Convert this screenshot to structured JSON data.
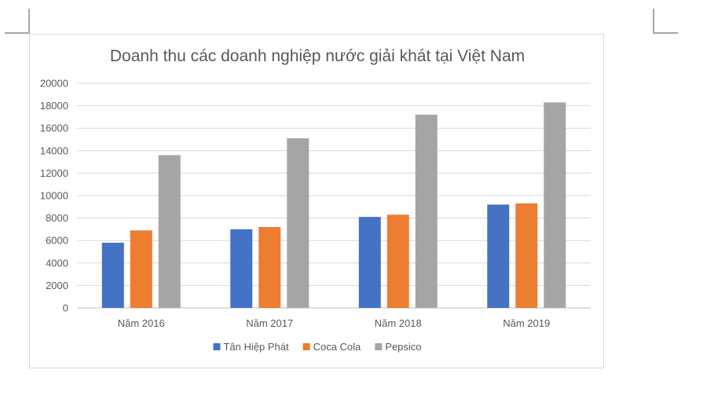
{
  "chart_data": {
    "type": "bar",
    "title": "Doanh thu các doanh nghiệp nước giải khát tại Việt Nam",
    "categories": [
      "Năm 2016",
      "Năm 2017",
      "Năm 2018",
      "Năm 2019"
    ],
    "series": [
      {
        "name": "Tân Hiệp Phát",
        "color": "#4472C4",
        "values": [
          5800,
          7000,
          8100,
          9200
        ]
      },
      {
        "name": "Coca Cola",
        "color": "#ED7D31",
        "values": [
          6900,
          7200,
          8300,
          9300
        ]
      },
      {
        "name": "Pepsico",
        "color": "#A5A5A5",
        "values": [
          13600,
          15100,
          17200,
          18300
        ]
      }
    ],
    "ylim": [
      0,
      20000
    ],
    "yticks": [
      "0",
      "2000",
      "4000",
      "6000",
      "8000",
      "10000",
      "12000",
      "14000",
      "16000",
      "18000",
      "20000"
    ],
    "grid": true,
    "legend_position": "bottom"
  }
}
